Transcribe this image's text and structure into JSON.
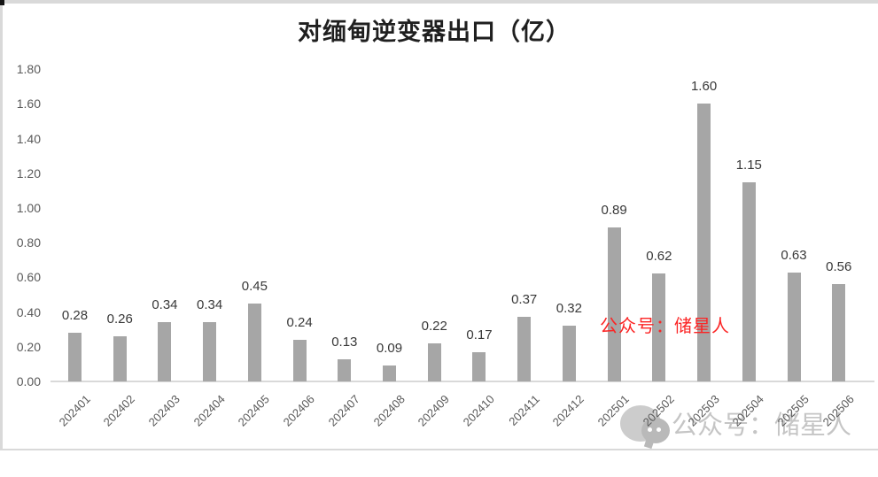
{
  "chart_data": {
    "type": "bar",
    "title": "对缅甸逆变器出口（亿）",
    "categories": [
      "202401",
      "202402",
      "202403",
      "202404",
      "202405",
      "202406",
      "202407",
      "202408",
      "202409",
      "202410",
      "202411",
      "202412",
      "202501",
      "202502",
      "202503",
      "202504",
      "202505",
      "202506"
    ],
    "values": [
      0.28,
      0.26,
      0.34,
      0.34,
      0.45,
      0.24,
      0.13,
      0.09,
      0.22,
      0.17,
      0.37,
      0.32,
      0.89,
      0.62,
      1.6,
      1.15,
      0.63,
      0.56
    ],
    "xlabel": "",
    "ylabel": "",
    "ylim": [
      0,
      1.8
    ],
    "ytick_step": 0.2,
    "grid": "off",
    "legend": "none",
    "data_labels": true,
    "bar_color": "#a6a6a6",
    "axis_label_color": "#595959",
    "data_label_color": "#383838"
  },
  "watermarks": {
    "red_text": "公众号：储星人",
    "red_color": "#fb2525",
    "gray_text": "公众号：储星人",
    "gray_color": "#c5c5c5",
    "icon": "wechat-icon"
  }
}
